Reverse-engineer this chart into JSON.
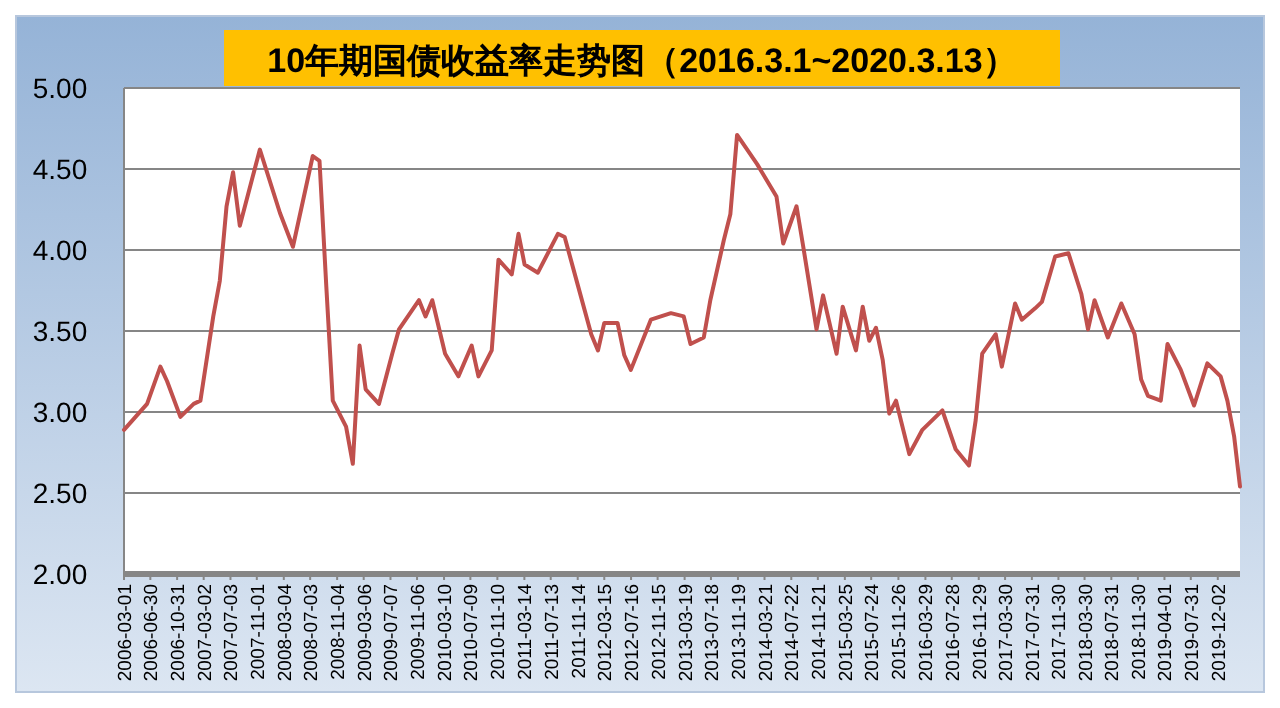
{
  "chart_data": {
    "type": "line",
    "title": "10年期国债收益率走势图（2016.3.1~2020.3.13）",
    "x": [
      "2006-03-01",
      "2006-06",
      "2006-08",
      "2006-09",
      "2006-11",
      "2007-01",
      "2007-02",
      "2007-04",
      "2007-05",
      "2007-06",
      "2007-07",
      "2007-08",
      "2007-11",
      "2008-02",
      "2008-04",
      "2008-07",
      "2008-08",
      "2008-09",
      "2008-10",
      "2008-12",
      "2009-01",
      "2009-02",
      "2009-03",
      "2009-05",
      "2009-07",
      "2009-08",
      "2009-11",
      "2009-12",
      "2010-01",
      "2010-03",
      "2010-05",
      "2010-07",
      "2010-08",
      "2010-10",
      "2010-11",
      "2011-01",
      "2011-02",
      "2011-03",
      "2011-05",
      "2011-08",
      "2011-09",
      "2011-11",
      "2012-01",
      "2012-02",
      "2012-03",
      "2012-05",
      "2012-06",
      "2012-07",
      "2012-10",
      "2013-01",
      "2013-03",
      "2013-04",
      "2013-06",
      "2013-07",
      "2013-09",
      "2013-10",
      "2013-11",
      "2014-02",
      "2014-05",
      "2014-06",
      "2014-08",
      "2014-09",
      "2014-11",
      "2014-12",
      "2015-02",
      "2015-03",
      "2015-05",
      "2015-06",
      "2015-07",
      "2015-08",
      "2015-09",
      "2015-10",
      "2015-11",
      "2016-01",
      "2016-03",
      "2016-06",
      "2016-08",
      "2016-10",
      "2016-11",
      "2016-12",
      "2017-02",
      "2017-03",
      "2017-05",
      "2017-06",
      "2017-08",
      "2017-09",
      "2017-11",
      "2018-01",
      "2018-03",
      "2018-04",
      "2018-05",
      "2018-07",
      "2018-09",
      "2018-11",
      "2018-12",
      "2019-01",
      "2019-03",
      "2019-04",
      "2019-06",
      "2019-08",
      "2019-10",
      "2019-12",
      "2020-01",
      "2020-02",
      "2020-03-13"
    ],
    "series": [
      {
        "color": "#c0504d",
        "values": [
          2.89,
          3.05,
          3.28,
          3.19,
          2.97,
          3.05,
          3.07,
          3.59,
          3.81,
          4.27,
          4.48,
          4.15,
          4.62,
          4.23,
          4.02,
          4.58,
          4.55,
          3.78,
          3.07,
          2.91,
          2.68,
          3.41,
          3.14,
          3.05,
          3.36,
          3.51,
          3.69,
          3.59,
          3.69,
          3.36,
          3.22,
          3.41,
          3.22,
          3.38,
          3.94,
          3.85,
          4.1,
          3.91,
          3.86,
          4.1,
          4.08,
          3.78,
          3.48,
          3.38,
          3.55,
          3.55,
          3.35,
          3.26,
          3.57,
          3.61,
          3.59,
          3.42,
          3.46,
          3.69,
          4.06,
          4.22,
          4.71,
          4.53,
          4.33,
          4.04,
          4.27,
          4.02,
          3.51,
          3.72,
          3.36,
          3.65,
          3.38,
          3.65,
          3.44,
          3.52,
          3.32,
          2.99,
          3.07,
          2.74,
          2.89,
          3.01,
          2.77,
          2.67,
          2.95,
          3.36,
          3.48,
          3.28,
          3.67,
          3.57,
          3.64,
          3.68,
          3.96,
          3.98,
          3.73,
          3.51,
          3.69,
          3.46,
          3.67,
          3.48,
          3.2,
          3.1,
          3.07,
          3.42,
          3.26,
          3.04,
          3.3,
          3.22,
          3.07,
          2.85,
          2.54
        ]
      }
    ],
    "xlim": [
      "2006-03-01",
      "2020-03-13"
    ],
    "xticks": [
      "2006-03-01",
      "2006-06-30",
      "2006-10-31",
      "2007-03-02",
      "2007-07-03",
      "2007-11-01",
      "2008-03-04",
      "2008-07-03",
      "2008-11-04",
      "2009-03-06",
      "2009-07-07",
      "2009-11-06",
      "2010-03-10",
      "2010-07-09",
      "2010-11-10",
      "2011-03-14",
      "2011-07-13",
      "2011-11-14",
      "2012-03-15",
      "2012-07-16",
      "2012-11-15",
      "2013-03-19",
      "2013-07-18",
      "2013-11-19",
      "2014-03-21",
      "2014-07-22",
      "2014-11-21",
      "2015-03-25",
      "2015-07-24",
      "2015-11-26",
      "2016-03-29",
      "2016-07-28",
      "2016-11-29",
      "2017-03-30",
      "2017-07-31",
      "2017-11-30",
      "2018-03-30",
      "2018-07-31",
      "2018-11-30",
      "2019-04-01",
      "2019-07-31",
      "2019-12-02"
    ],
    "ylim": [
      2,
      5
    ],
    "yticks": [
      {
        "value": 2,
        "label": "2.00"
      },
      {
        "value": 2.5,
        "label": "2.50"
      },
      {
        "value": 3,
        "label": "3.00"
      },
      {
        "value": 3.5,
        "label": "3.50"
      },
      {
        "value": 4,
        "label": "4.00"
      },
      {
        "value": 4.5,
        "label": "4.50"
      },
      {
        "value": 5,
        "label": "5.00"
      }
    ],
    "grid": "y",
    "marker": "none",
    "line_style": "solid"
  }
}
